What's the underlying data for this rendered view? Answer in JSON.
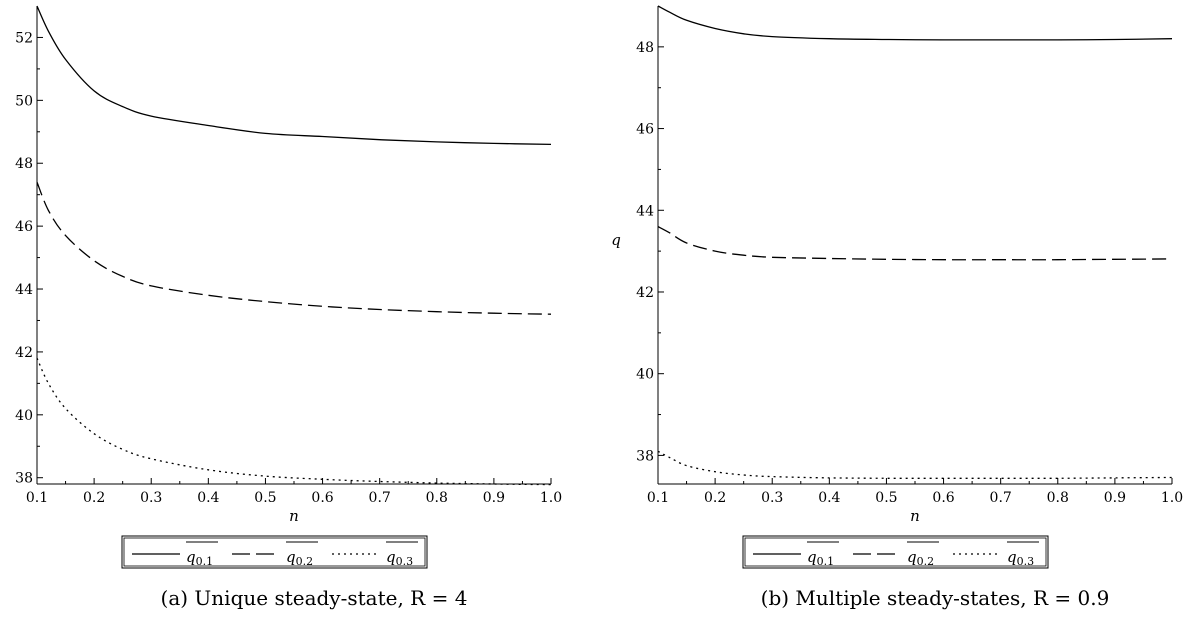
{
  "chart_data": [
    {
      "type": "line",
      "caption": "(a) Unique steady-state, R = 4",
      "xlabel": "n",
      "ylabel": "",
      "xlim": [
        0.1,
        1.0
      ],
      "ylim": [
        37.8,
        53.0
      ],
      "xticks": [
        "0.1",
        "0.2",
        "0.3",
        "0.4",
        "0.5",
        "0.6",
        "0.7",
        "0.8",
        "0.9",
        "1.0"
      ],
      "yticks": [
        "38",
        "40",
        "42",
        "44",
        "46",
        "48",
        "50",
        "52"
      ],
      "grid": false,
      "legend_position": "bottom",
      "x": [
        0.1,
        0.12,
        0.15,
        0.2,
        0.25,
        0.3,
        0.4,
        0.5,
        0.6,
        0.7,
        0.8,
        0.9,
        1.0
      ],
      "series": [
        {
          "name": "q0.1",
          "style": "solid",
          "values": [
            53.0,
            52.2,
            51.3,
            50.3,
            49.8,
            49.5,
            49.2,
            48.95,
            48.85,
            48.75,
            48.68,
            48.63,
            48.6
          ]
        },
        {
          "name": "q0.2",
          "style": "dashed",
          "values": [
            47.4,
            46.5,
            45.7,
            44.9,
            44.4,
            44.1,
            43.8,
            43.6,
            43.45,
            43.35,
            43.28,
            43.23,
            43.2
          ]
        },
        {
          "name": "q0.3",
          "style": "dotted",
          "values": [
            41.8,
            41.0,
            40.2,
            39.4,
            38.9,
            38.6,
            38.25,
            38.05,
            37.95,
            37.88,
            37.83,
            37.8,
            37.78
          ]
        }
      ]
    },
    {
      "type": "line",
      "caption": "(b) Multiple steady-states, R = 0.9",
      "xlabel": "n",
      "ylabel": "q",
      "xlim": [
        0.1,
        1.0
      ],
      "ylim": [
        37.3,
        49.0
      ],
      "xticks": [
        "0.1",
        "0.2",
        "0.3",
        "0.4",
        "0.5",
        "0.6",
        "0.7",
        "0.8",
        "0.9",
        "1.0"
      ],
      "yticks": [
        "38",
        "40",
        "42",
        "44",
        "46",
        "48"
      ],
      "grid": false,
      "legend_position": "bottom",
      "x": [
        0.1,
        0.12,
        0.15,
        0.2,
        0.25,
        0.3,
        0.4,
        0.5,
        0.6,
        0.7,
        0.8,
        0.9,
        1.0
      ],
      "series": [
        {
          "name": "q0.1",
          "style": "solid",
          "values": [
            49.0,
            48.85,
            48.65,
            48.45,
            48.32,
            48.25,
            48.2,
            48.18,
            48.17,
            48.17,
            48.17,
            48.18,
            48.2
          ]
        },
        {
          "name": "q0.2",
          "style": "dashed",
          "values": [
            43.6,
            43.45,
            43.2,
            43.0,
            42.9,
            42.85,
            42.82,
            42.8,
            42.79,
            42.79,
            42.79,
            42.8,
            42.81
          ]
        },
        {
          "name": "q0.3",
          "style": "dotted",
          "values": [
            38.1,
            37.95,
            37.75,
            37.6,
            37.52,
            37.48,
            37.45,
            37.44,
            37.44,
            37.44,
            37.44,
            37.45,
            37.46
          ]
        }
      ]
    }
  ],
  "legend": {
    "entries": [
      {
        "base": "q",
        "sub": "0.1",
        "style": "solid"
      },
      {
        "base": "q",
        "sub": "0.2",
        "style": "dashed"
      },
      {
        "base": "q",
        "sub": "0.3",
        "style": "dotted"
      }
    ]
  }
}
